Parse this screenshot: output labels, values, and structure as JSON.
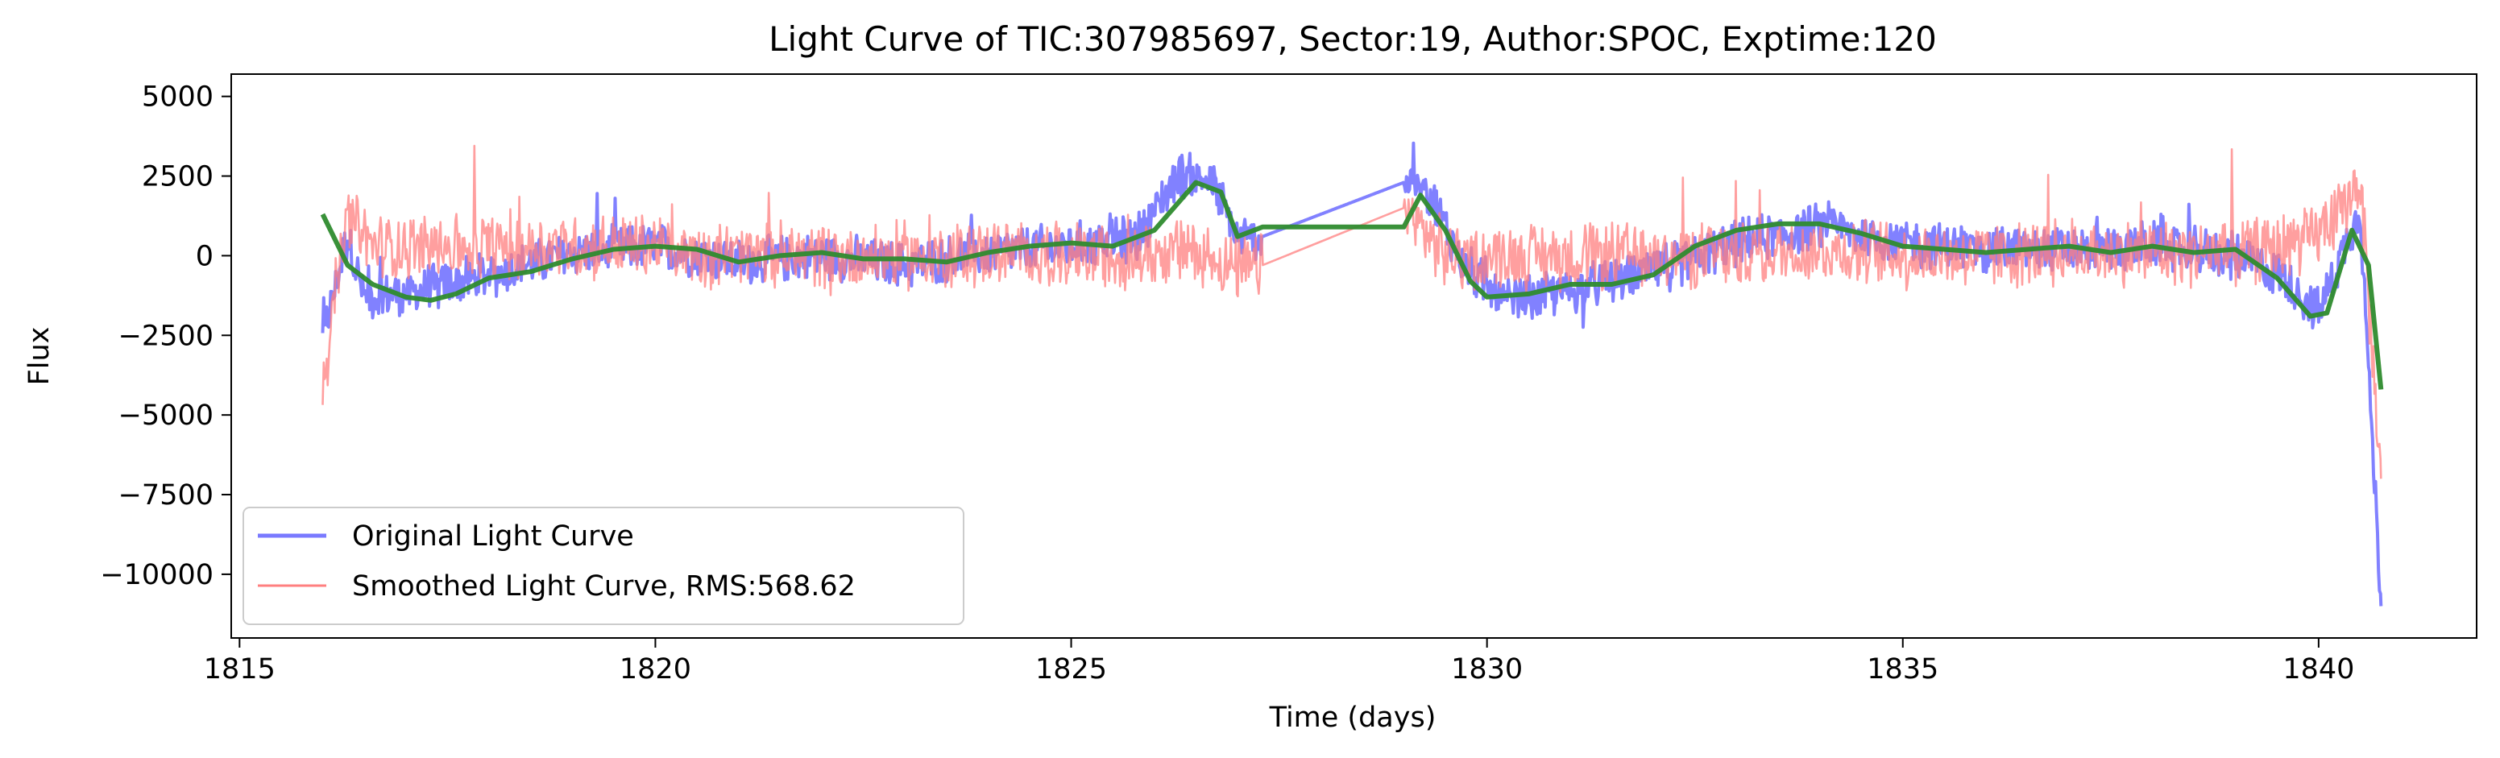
{
  "chart_data": {
    "type": "line",
    "title": "Light Curve of TIC:307985697, Sector:19, Author:SPOC, Exptime:120",
    "xlabel": "Time (days)",
    "ylabel": "Flux",
    "xlim": [
      1814.9,
      1841.9
    ],
    "ylim": [
      -12000,
      5700
    ],
    "xticks": [
      1815,
      1820,
      1825,
      1830,
      1835,
      1840
    ],
    "xtick_labels": [
      "1815",
      "1820",
      "1825",
      "1830",
      "1835",
      "1840"
    ],
    "yticks": [
      -10000,
      -7500,
      -5000,
      -2500,
      0,
      2500,
      5000
    ],
    "ytick_labels": [
      "−10000",
      "−7500",
      "−5000",
      "−2500",
      "0",
      "2500",
      "5000"
    ],
    "grid": false,
    "legend_position": "lower-left",
    "legend": [
      {
        "label": "Original Light Curve",
        "color": "#7a7aff"
      },
      {
        "label": "Smoothed Light Curve, RMS:568.62",
        "color": "#ff7f7f"
      }
    ],
    "series": [
      {
        "name": "Original Light Curve",
        "color": "#7a7aff",
        "style": "noisy",
        "noise_amp": 700,
        "x": [
          1816.0,
          1816.3,
          1816.5,
          1817.0,
          1817.5,
          1818.0,
          1819.0,
          1820.0,
          1821.0,
          1822.0,
          1823.0,
          1824.0,
          1825.0,
          1825.8,
          1826.3,
          1826.7,
          1827.0,
          1827.3,
          1829.0,
          1829.3,
          1829.7,
          1830.2,
          1831.0,
          1832.0,
          1833.0,
          1834.0,
          1835.0,
          1836.0,
          1837.0,
          1838.0,
          1839.0,
          1839.6,
          1840.0,
          1840.3,
          1840.5,
          1840.75
        ],
        "y": [
          -2600,
          600,
          -1300,
          -1200,
          -900,
          -600,
          100,
          300,
          -200,
          0,
          -300,
          100,
          300,
          600,
          2600,
          2300,
          500,
          600,
          2300,
          2000,
          -200,
          -1500,
          -1100,
          -500,
          400,
          900,
          400,
          200,
          200,
          300,
          0,
          -700,
          -1800,
          200,
          1500,
          -11000
        ]
      },
      {
        "name": "Smoothed Light Curve, RMS:568.62",
        "color": "#ff7f7f",
        "style": "noisy",
        "noise_amp": 1000,
        "x": [
          1816.0,
          1816.3,
          1816.6,
          1817.0,
          1818.0,
          1819.0,
          1820.0,
          1821.0,
          1822.0,
          1823.0,
          1824.0,
          1825.0,
          1825.8,
          1826.5,
          1827.0,
          1827.3,
          1829.0,
          1829.5,
          1830.0,
          1831.0,
          1832.0,
          1833.0,
          1834.0,
          1835.0,
          1836.0,
          1837.0,
          1838.0,
          1839.0,
          1839.8,
          1840.2,
          1840.5,
          1840.75
        ],
        "y": [
          -3800,
          1200,
          300,
          300,
          300,
          300,
          300,
          0,
          0,
          0,
          100,
          0,
          0,
          200,
          -500,
          -300,
          1500,
          0,
          0,
          0,
          0,
          0,
          200,
          0,
          0,
          100,
          100,
          100,
          400,
          1000,
          2500,
          -7000
        ]
      },
      {
        "name": "",
        "color": "#2e8b2e",
        "style": "smooth",
        "x": [
          1816.0,
          1816.3,
          1816.6,
          1817.0,
          1817.3,
          1817.6,
          1818.0,
          1818.5,
          1819.0,
          1819.5,
          1820.0,
          1820.5,
          1821.0,
          1821.5,
          1822.0,
          1822.5,
          1823.0,
          1823.5,
          1824.0,
          1824.5,
          1825.0,
          1825.5,
          1826.0,
          1826.5,
          1826.8,
          1827.0,
          1827.3,
          1829.0,
          1829.2,
          1829.5,
          1829.8,
          1830.0,
          1830.5,
          1831.0,
          1831.5,
          1832.0,
          1832.5,
          1833.0,
          1833.5,
          1834.0,
          1834.5,
          1835.0,
          1835.5,
          1836.0,
          1836.5,
          1837.0,
          1837.5,
          1838.0,
          1838.5,
          1839.0,
          1839.5,
          1839.9,
          1840.1,
          1840.4,
          1840.6,
          1840.75
        ],
        "y": [
          1300,
          -300,
          -900,
          -1300,
          -1400,
          -1200,
          -700,
          -500,
          -100,
          200,
          300,
          200,
          -200,
          0,
          100,
          -100,
          -100,
          -200,
          100,
          300,
          400,
          300,
          800,
          2300,
          2000,
          600,
          900,
          900,
          1900,
          800,
          -800,
          -1300,
          -1200,
          -900,
          -900,
          -600,
          300,
          800,
          1000,
          1000,
          700,
          300,
          200,
          100,
          200,
          300,
          100,
          300,
          100,
          200,
          -700,
          -1900,
          -1800,
          800,
          -300,
          -4200
        ]
      }
    ]
  }
}
